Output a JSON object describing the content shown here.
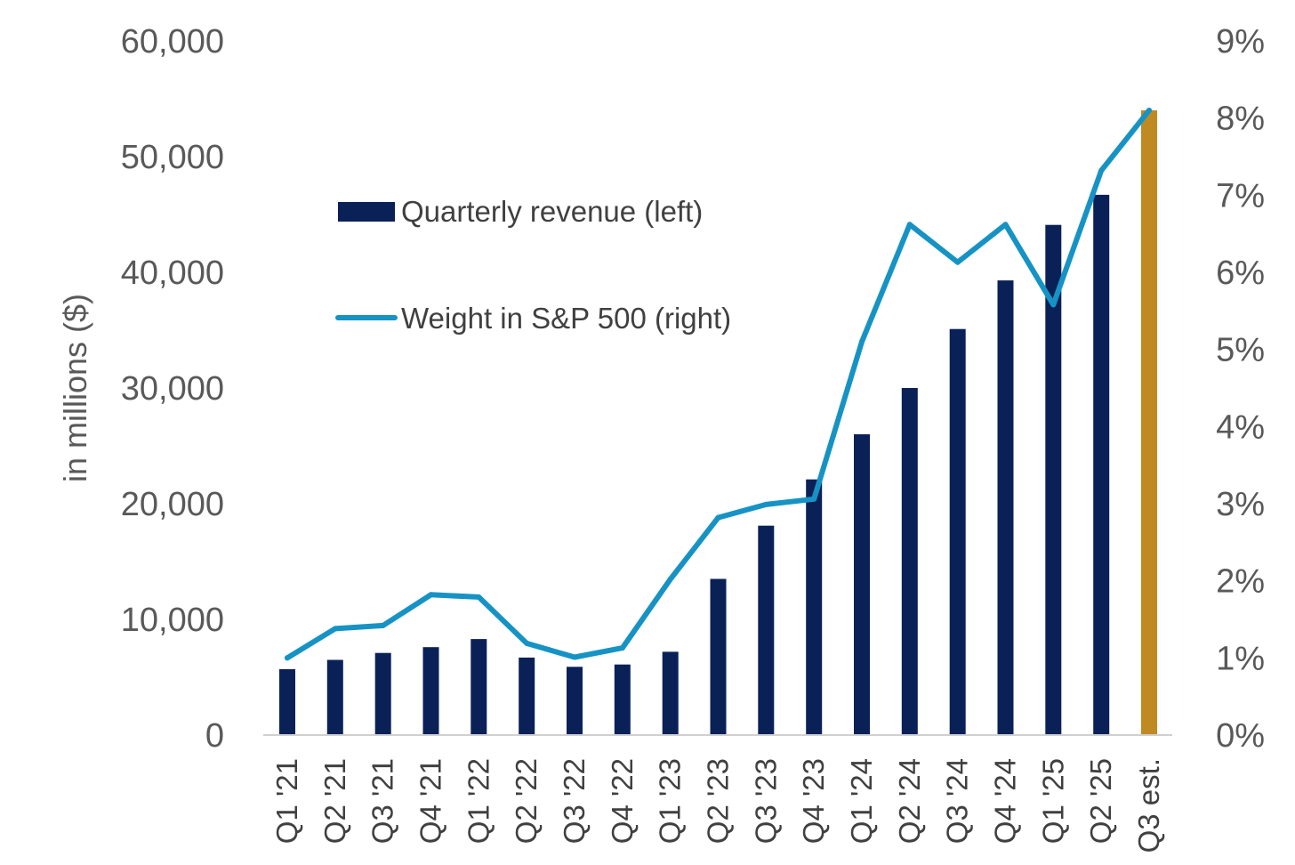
{
  "chart_data": {
    "type": "bar",
    "title": "",
    "xlabel": "",
    "ylabel": "in millions ($)",
    "categories": [
      "Q1 '21",
      "Q2 '21",
      "Q3 '21",
      "Q4 '21",
      "Q1 '22",
      "Q2 '22",
      "Q3 '22",
      "Q4 '22",
      "Q1 '23",
      "Q2 '23",
      "Q3 '23",
      "Q4 '23",
      "Q1 '24",
      "Q2 '24",
      "Q3 '24",
      "Q4 '24",
      "Q1 '25",
      "Q2 '25",
      "Q3 est."
    ],
    "ylim": [
      0,
      60000
    ],
    "y_ticks": [
      "0",
      "10,000",
      "20,000",
      "30,000",
      "40,000",
      "50,000",
      "60,000"
    ],
    "y_tick_values": [
      0,
      10000,
      20000,
      30000,
      40000,
      50000,
      60000
    ],
    "y2lim": [
      0,
      9
    ],
    "y2_ticks": [
      "0%",
      "1%",
      "2%",
      "3%",
      "4%",
      "5%",
      "6%",
      "7%",
      "8%",
      "9%"
    ],
    "y2_tick_values": [
      0,
      1,
      2,
      3,
      4,
      5,
      6,
      7,
      8,
      9
    ],
    "grid": false,
    "legend_position": "upper-left",
    "series": [
      {
        "name": "Quarterly revenue (left)",
        "kind": "bar",
        "axis": "left",
        "color": "#0a2158",
        "highlight_color": "#c08a22",
        "highlight_index": 18,
        "values": [
          5700,
          6500,
          7100,
          7600,
          8300,
          6700,
          5900,
          6100,
          7200,
          13500,
          18100,
          22100,
          26000,
          30000,
          35100,
          39300,
          44100,
          46700,
          54000
        ]
      },
      {
        "name": "Weight in S&P 500 (right)",
        "kind": "line",
        "axis": "right",
        "color": "#1693c4",
        "values": [
          1.0,
          1.38,
          1.42,
          1.82,
          1.79,
          1.19,
          1.01,
          1.13,
          2.02,
          2.82,
          2.99,
          3.06,
          5.1,
          6.62,
          6.13,
          6.62,
          5.58,
          7.32,
          8.1
        ]
      }
    ]
  }
}
